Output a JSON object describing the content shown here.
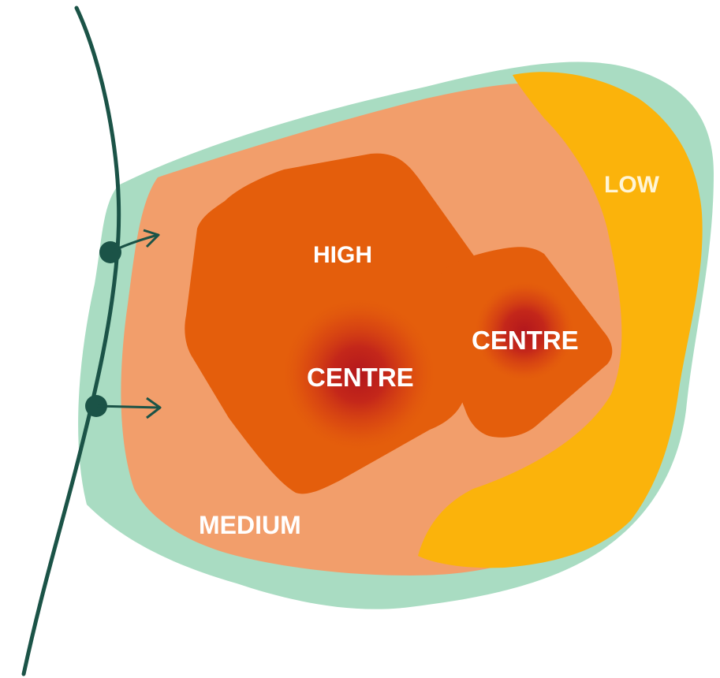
{
  "labels": {
    "low": "LOW",
    "high": "HIGH",
    "medium": "MEDIUM",
    "centre_1": "CENTRE",
    "centre_2": "CENTRE"
  },
  "colors": {
    "outer_zone": "#a9dcc2",
    "medium_zone": "#f29e6b",
    "low_zone": "#fbb30b",
    "high_zone": "#e45e0c",
    "centre_core": "#b3171c",
    "path_line": "#1b5347",
    "label_text": "#ffffff"
  }
}
